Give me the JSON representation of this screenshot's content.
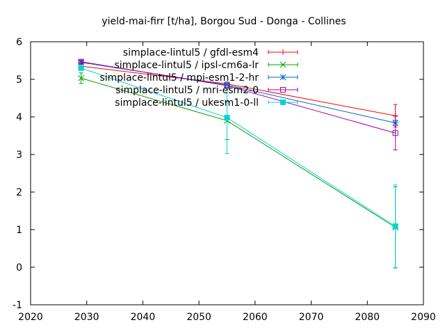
{
  "chart_data": {
    "type": "line",
    "title": "yield-mai-firr [t/ha], Borgou Sud - Donga - Collines",
    "xlabel": "",
    "ylabel": "",
    "xlim": [
      2020,
      2090
    ],
    "ylim": [
      -1,
      6
    ],
    "x_ticks": [
      2020,
      2030,
      2040,
      2050,
      2060,
      2070,
      2080,
      2090
    ],
    "y_ticks": [
      -1,
      0,
      1,
      2,
      3,
      4,
      5,
      6
    ],
    "grid": false,
    "legend_position": "top-right",
    "series": [
      {
        "name": "simplace-lintul5 / gfdl-esm4",
        "color": "#ff0000",
        "marker": "plus",
        "x": [
          2029,
          2055,
          2085
        ],
        "y": [
          5.35,
          4.88,
          4.03
        ],
        "err": [
          0.05,
          0.05,
          0.3
        ]
      },
      {
        "name": "simplace-lintul5 / ipsl-cm6a-lr",
        "color": "#00a000",
        "marker": "cross",
        "x": [
          2029,
          2055,
          2085
        ],
        "y": [
          5.03,
          3.9,
          1.06
        ],
        "err": [
          0.14,
          0.5,
          1.08
        ]
      },
      {
        "name": "simplace-lintul5 / mpi-esm1-2-hr",
        "color": "#0066cc",
        "marker": "star",
        "x": [
          2029,
          2055,
          2085
        ],
        "y": [
          5.45,
          4.85,
          3.84
        ],
        "err": [
          0.04,
          0.06,
          0.07
        ]
      },
      {
        "name": "simplace-lintul5 / mri-esm2-0",
        "color": "#a000a0",
        "marker": "square-open",
        "x": [
          2029,
          2055,
          2085
        ],
        "y": [
          5.47,
          4.83,
          3.57
        ],
        "err": [
          0.04,
          0.06,
          0.45
        ]
      },
      {
        "name": "simplace-lintul5 / ukesm1-0-ll",
        "color": "#00d4d4",
        "marker": "square-filled",
        "x": [
          2029,
          2055,
          2085
        ],
        "y": [
          5.3,
          3.98,
          1.09
        ],
        "err": [
          0.05,
          0.95,
          1.1
        ]
      }
    ]
  }
}
